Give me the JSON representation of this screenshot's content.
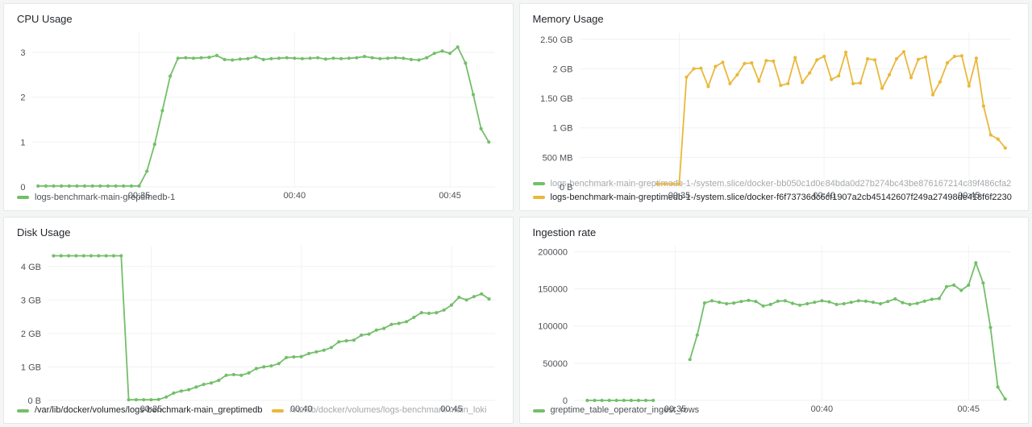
{
  "dashboard": {
    "background_color": "#F4F5F5",
    "panel_background": "#FFFFFF",
    "accent_green": "#73BF69",
    "accent_yellow": "#EAB839",
    "layout": "2x2-grid"
  },
  "chart_data": [
    {
      "type": "line",
      "title": "CPU Usage",
      "xlabel": "",
      "ylabel": "",
      "x_unit": "time-of-day (minutes past 00:00)",
      "x_range": [
        31.55,
        46.45
      ],
      "y_range": [
        0,
        3.45
      ],
      "grid": true,
      "legend_position": "bottom",
      "x_ticks": [
        {
          "t": 35,
          "label": "00:35"
        },
        {
          "t": 40,
          "label": "00:40"
        },
        {
          "t": 45,
          "label": "00:45"
        }
      ],
      "y_ticks": [
        {
          "v": 0,
          "label": "0"
        },
        {
          "v": 1,
          "label": "1"
        },
        {
          "v": 2,
          "label": "2"
        },
        {
          "v": 3,
          "label": "3"
        }
      ],
      "series": [
        {
          "name": "logs-benchmark-main-greptimedb-1",
          "color": "#73BF69",
          "emphasis": "normal",
          "t_start": 31.75,
          "t_step": 0.25,
          "values": [
            0.02,
            0.02,
            0.02,
            0.02,
            0.02,
            0.02,
            0.02,
            0.02,
            0.02,
            0.02,
            0.02,
            0.02,
            0.02,
            0.02,
            0.35,
            0.95,
            1.7,
            2.47,
            2.87,
            2.88,
            2.87,
            2.88,
            2.89,
            2.93,
            2.84,
            2.83,
            2.85,
            2.86,
            2.9,
            2.84,
            2.86,
            2.87,
            2.88,
            2.87,
            2.86,
            2.87,
            2.88,
            2.85,
            2.87,
            2.86,
            2.87,
            2.88,
            2.91,
            2.88,
            2.86,
            2.87,
            2.88,
            2.87,
            2.84,
            2.83,
            2.88,
            2.98,
            3.03,
            2.98,
            3.12,
            2.76,
            2.06,
            1.3,
            1.0
          ]
        }
      ]
    },
    {
      "type": "line",
      "title": "Memory Usage",
      "xlabel": "",
      "ylabel": "",
      "x_unit": "time-of-day (minutes past 00:00)",
      "y_unit": "GB",
      "x_range": [
        31.55,
        46.45
      ],
      "y_range": [
        0,
        2.62
      ],
      "grid": true,
      "legend_position": "bottom",
      "x_ticks": [
        {
          "t": 35,
          "label": "00:35"
        },
        {
          "t": 40,
          "label": "00:40"
        },
        {
          "t": 45,
          "label": "00:45"
        }
      ],
      "y_ticks": [
        {
          "v": 0,
          "label": "0 B"
        },
        {
          "v": 0.5,
          "label": "500 MB"
        },
        {
          "v": 1,
          "label": "1 GB"
        },
        {
          "v": 1.5,
          "label": "1.50 GB"
        },
        {
          "v": 2,
          "label": "2 GB"
        },
        {
          "v": 2.5,
          "label": "2.50 GB"
        }
      ],
      "series": [
        {
          "name": "logs-benchmark-main-greptimedb-1-/system.slice/docker-bb050c1d0e84bda0d27b274bc43be876167214c89f486cfa2",
          "color": "#73BF69",
          "emphasis": "dim",
          "t_start": 0,
          "t_step": 0.25,
          "values": []
        },
        {
          "name": "logs-benchmark-main-greptimedb-1-/system.slice/docker-f6f73736dc6cf1907a2cb45142607f249a27498de418f6f2230",
          "color": "#EAB839",
          "emphasis": "strong",
          "t_start": 34.25,
          "t_step": 0.25,
          "values": [
            0.05,
            0.05,
            0.05,
            0.05,
            1.86,
            2.0,
            2.01,
            1.7,
            2.04,
            2.11,
            1.75,
            1.9,
            2.09,
            2.1,
            1.79,
            2.14,
            2.13,
            1.72,
            1.75,
            2.19,
            1.77,
            1.93,
            2.15,
            2.21,
            1.82,
            1.88,
            2.28,
            1.75,
            1.76,
            2.17,
            2.15,
            1.67,
            1.9,
            2.17,
            2.29,
            1.85,
            2.16,
            2.2,
            1.56,
            1.78,
            2.1,
            2.21,
            2.22,
            1.71,
            2.18,
            1.37,
            0.88,
            0.81,
            0.66
          ]
        }
      ]
    },
    {
      "type": "line",
      "title": "Disk Usage",
      "xlabel": "",
      "ylabel": "",
      "x_unit": "time-of-day (minutes past 00:00)",
      "y_unit": "GB",
      "x_range": [
        31.55,
        46.45
      ],
      "y_range": [
        0,
        4.62
      ],
      "grid": true,
      "legend_position": "bottom",
      "x_ticks": [
        {
          "t": 35,
          "label": "00:35"
        },
        {
          "t": 40,
          "label": "00:40"
        },
        {
          "t": 45,
          "label": "00:45"
        }
      ],
      "y_ticks": [
        {
          "v": 0,
          "label": "0 B"
        },
        {
          "v": 1,
          "label": "1 GB"
        },
        {
          "v": 2,
          "label": "2 GB"
        },
        {
          "v": 3,
          "label": "3 GB"
        },
        {
          "v": 4,
          "label": "4 GB"
        }
      ],
      "series": [
        {
          "name": "/var/lib/docker/volumes/logs-benchmark-main_greptimedb",
          "color": "#73BF69",
          "emphasis": "strong",
          "t_start": 31.75,
          "t_step": 0.25,
          "values": [
            4.32,
            4.32,
            4.32,
            4.32,
            4.32,
            4.32,
            4.32,
            4.32,
            4.32,
            4.32,
            0.02,
            0.02,
            0.02,
            0.02,
            0.03,
            0.1,
            0.22,
            0.28,
            0.32,
            0.4,
            0.48,
            0.52,
            0.6,
            0.75,
            0.77,
            0.75,
            0.82,
            0.95,
            1.0,
            1.03,
            1.1,
            1.28,
            1.3,
            1.31,
            1.4,
            1.45,
            1.5,
            1.58,
            1.75,
            1.78,
            1.8,
            1.95,
            1.98,
            2.1,
            2.15,
            2.27,
            2.3,
            2.35,
            2.48,
            2.62,
            2.6,
            2.62,
            2.7,
            2.85,
            3.08,
            3.0,
            3.1,
            3.18,
            3.03
          ]
        },
        {
          "name": "/var/lib/docker/volumes/logs-benchmark-main_loki",
          "color": "#EAB839",
          "emphasis": "dim",
          "t_start": 0,
          "t_step": 0.25,
          "values": []
        }
      ]
    },
    {
      "type": "line",
      "title": "Ingestion rate",
      "xlabel": "",
      "ylabel": "",
      "x_unit": "time-of-day (minutes past 00:00)",
      "y_unit": "rows",
      "x_range": [
        31.55,
        46.45
      ],
      "y_range": [
        0,
        208000
      ],
      "grid": true,
      "legend_position": "bottom",
      "x_ticks": [
        {
          "t": 35,
          "label": "00:35"
        },
        {
          "t": 40,
          "label": "00:40"
        },
        {
          "t": 45,
          "label": "00:45"
        }
      ],
      "y_ticks": [
        {
          "v": 0,
          "label": "0"
        },
        {
          "v": 50000,
          "label": "50000"
        },
        {
          "v": 100000,
          "label": "100000"
        },
        {
          "v": 150000,
          "label": "150000"
        },
        {
          "v": 200000,
          "label": "200000"
        }
      ],
      "series": [
        {
          "name": "greptime_table_operator_ingest_rows",
          "color": "#73BF69",
          "emphasis": "normal",
          "t_start": 32.0,
          "t_step": 0.25,
          "values": [
            0,
            0,
            0,
            0,
            0,
            0,
            0,
            0,
            0,
            0,
            null,
            null,
            null,
            null,
            55000,
            88000,
            131000,
            134000,
            132000,
            130000,
            131000,
            133000,
            134500,
            133000,
            127000,
            129000,
            133500,
            134000,
            130500,
            128000,
            130000,
            132000,
            134000,
            132500,
            129000,
            130000,
            132000,
            134000,
            133500,
            132000,
            130000,
            133000,
            136500,
            131500,
            129000,
            130500,
            133500,
            136000,
            137000,
            153000,
            155000,
            148000,
            155000,
            185000,
            158000,
            98000,
            18000,
            2000
          ]
        }
      ]
    }
  ]
}
